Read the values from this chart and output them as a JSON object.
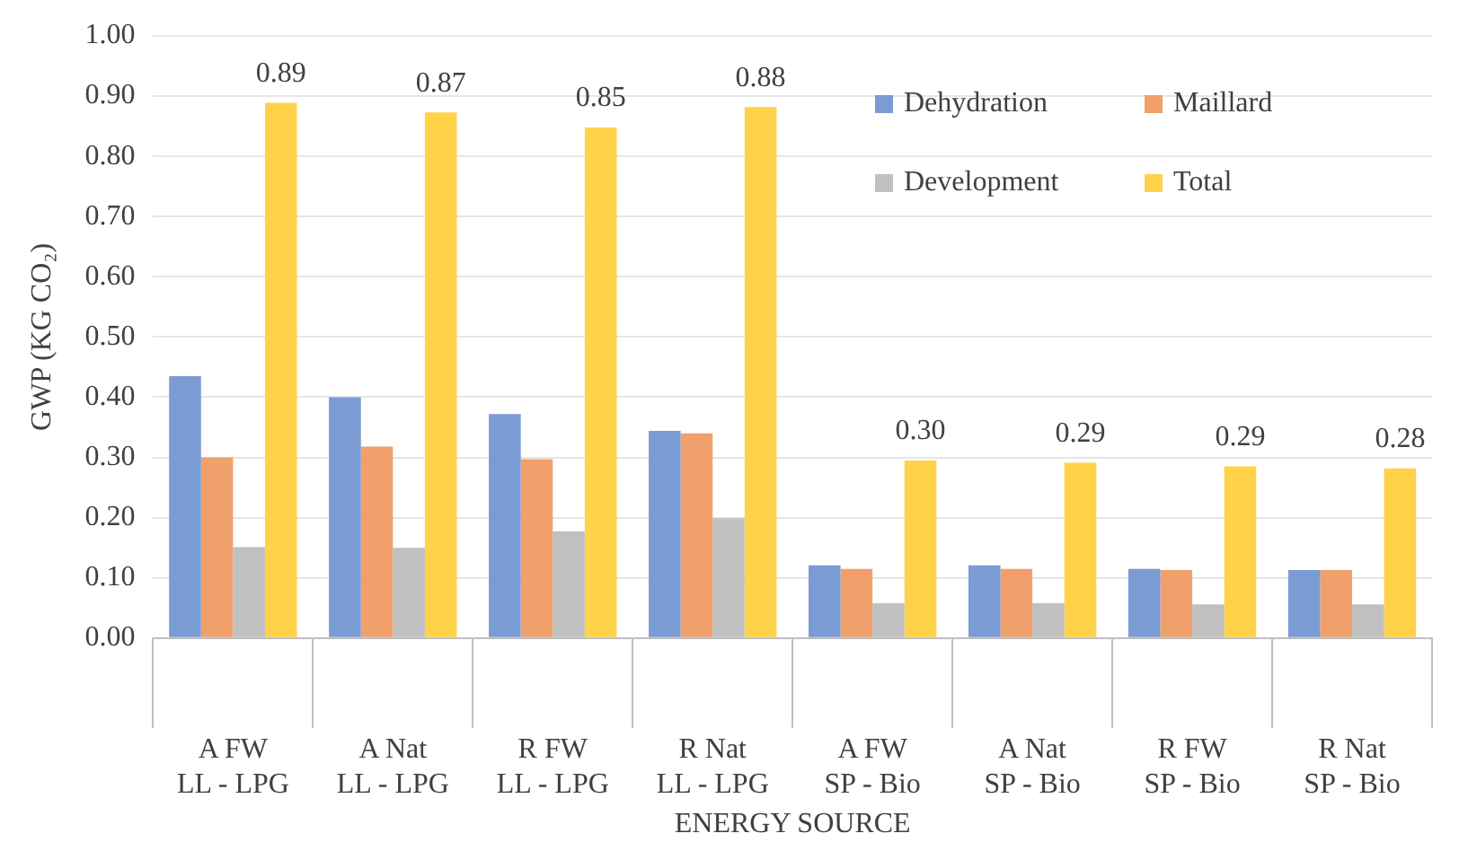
{
  "chart_data": {
    "type": "bar",
    "xlabel": "ENERGY SOURCE",
    "ylabel": "GWP (KG CO₂)",
    "categories": [
      "A FW\nLL - LPG",
      "A Nat\nLL - LPG",
      "R FW\nLL - LPG",
      "R Nat\nLL - LPG",
      "A FW\nSP - Bio",
      "A Nat\nSP - Bio",
      "R FW\nSP - Bio",
      "R Nat\nSP - Bio"
    ],
    "series": [
      {
        "name": "Dehydration",
        "color": "#7b9bd4",
        "values": [
          0.435,
          0.4,
          0.372,
          0.344,
          0.121,
          0.121,
          0.115,
          0.113
        ]
      },
      {
        "name": "Maillard",
        "color": "#f0a06b",
        "values": [
          0.3,
          0.318,
          0.297,
          0.34,
          0.115,
          0.115,
          0.113,
          0.113
        ]
      },
      {
        "name": "Development",
        "color": "#c0c0c0",
        "values": [
          0.151,
          0.15,
          0.177,
          0.199,
          0.058,
          0.058,
          0.056,
          0.056
        ]
      },
      {
        "name": "Total",
        "color": "#ffd24a",
        "values": [
          0.889,
          0.873,
          0.848,
          0.882,
          0.295,
          0.291,
          0.285,
          0.282
        ],
        "value_labels": [
          "0.89",
          "0.87",
          "0.85",
          "0.88",
          "0.30",
          "0.29",
          "0.29",
          "0.28"
        ]
      }
    ],
    "ylim": [
      0,
      1
    ],
    "yticks": [
      {
        "value": 0,
        "label": "0.00"
      },
      {
        "value": 0.1,
        "label": "0.10"
      },
      {
        "value": 0.2,
        "label": "0.20"
      },
      {
        "value": 0.3,
        "label": "0.30"
      },
      {
        "value": 0.4,
        "label": "0.40"
      },
      {
        "value": 0.5,
        "label": "0.50"
      },
      {
        "value": 0.6,
        "label": "0.60"
      },
      {
        "value": 0.7,
        "label": "0.70"
      },
      {
        "value": 0.8,
        "label": "0.80"
      },
      {
        "value": 0.9,
        "label": "0.90"
      },
      {
        "value": 1,
        "label": "1.00"
      }
    ],
    "grid": "y",
    "legend": "top right"
  }
}
